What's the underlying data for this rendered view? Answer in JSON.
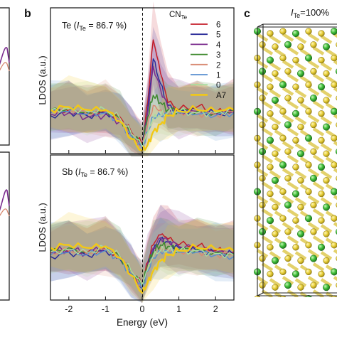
{
  "panel_labels": {
    "b": "b",
    "c": "c"
  },
  "panel_c": {
    "title_prefix": "I",
    "title_sub": "Te",
    "title_suffix": "=100%"
  },
  "colors": {
    "6": "#c41e2a",
    "5": "#2b2d9a",
    "4": "#7b2d8e",
    "3": "#3e8a2e",
    "2": "#d88a72",
    "1": "#5a8fd0",
    "0": "#a8dca0",
    "A7": "#f2c816"
  },
  "chart_data": [
    {
      "type": "line",
      "panel": "b-top",
      "title": "Te (I_Te = 86.7 %)",
      "title_parts": {
        "a": "Te (",
        "i": "I",
        "sub": "Te",
        "b": " = 86.7 %)"
      },
      "ylabel": "LDOS (a.u.)",
      "xlabel": "",
      "xlim": [
        -2.5,
        2.5
      ],
      "ylim": [
        0,
        1
      ],
      "legend": {
        "placement": "top-right",
        "header": "CN",
        "header_sub": "Te",
        "entries": [
          "6",
          "5",
          "4",
          "3",
          "2",
          "1",
          "0",
          "A7"
        ]
      },
      "x": [
        -2.5,
        -2.0,
        -1.5,
        -1.0,
        -0.6,
        -0.3,
        0.0,
        0.15,
        0.3,
        0.5,
        0.7,
        1.0,
        1.5,
        2.0,
        2.5
      ],
      "series": [
        {
          "name": "6",
          "values": [
            0.28,
            0.3,
            0.27,
            0.29,
            0.25,
            0.15,
            0.06,
            0.35,
            0.78,
            0.55,
            0.35,
            0.3,
            0.32,
            0.28,
            0.3
          ]
        },
        {
          "name": "5",
          "values": [
            0.26,
            0.29,
            0.26,
            0.28,
            0.23,
            0.13,
            0.05,
            0.3,
            0.65,
            0.48,
            0.33,
            0.29,
            0.3,
            0.27,
            0.28
          ]
        },
        {
          "name": "4",
          "values": [
            0.27,
            0.28,
            0.25,
            0.27,
            0.22,
            0.14,
            0.05,
            0.28,
            0.6,
            0.44,
            0.32,
            0.28,
            0.29,
            0.27,
            0.29
          ]
        },
        {
          "name": "3",
          "values": [
            0.3,
            0.31,
            0.28,
            0.3,
            0.24,
            0.14,
            0.06,
            0.25,
            0.4,
            0.35,
            0.3,
            0.3,
            0.29,
            0.28,
            0.3
          ]
        },
        {
          "name": "2",
          "values": [
            0.29,
            0.3,
            0.27,
            0.29,
            0.23,
            0.13,
            0.05,
            0.2,
            0.33,
            0.3,
            0.28,
            0.29,
            0.28,
            0.27,
            0.29
          ]
        },
        {
          "name": "1",
          "values": [
            0.28,
            0.29,
            0.27,
            0.28,
            0.22,
            0.12,
            0.04,
            0.15,
            0.25,
            0.26,
            0.27,
            0.28,
            0.27,
            0.26,
            0.28
          ]
        },
        {
          "name": "0",
          "values": [
            0.3,
            0.31,
            0.29,
            0.3,
            0.24,
            0.14,
            0.05,
            0.14,
            0.24,
            0.26,
            0.28,
            0.29,
            0.28,
            0.28,
            0.3
          ]
        },
        {
          "name": "A7",
          "values": [
            0.3,
            0.32,
            0.3,
            0.3,
            0.22,
            0.1,
            0.02,
            0.06,
            0.15,
            0.2,
            0.26,
            0.29,
            0.3,
            0.29,
            0.3
          ]
        }
      ],
      "grid": false
    },
    {
      "type": "line",
      "panel": "b-bottom",
      "title": "Sb (I_Te = 86.7 %)",
      "title_parts": {
        "a": "Sb (",
        "i": "I",
        "sub": "Te",
        "b": " = 86.7 %)"
      },
      "ylabel": "LDOS (a.u.)",
      "xlabel": "Energy (eV)",
      "xlim": [
        -2.5,
        2.5
      ],
      "ylim": [
        0,
        1
      ],
      "xticks": [
        -2,
        -1,
        0,
        1,
        2
      ],
      "x": [
        -2.5,
        -2.0,
        -1.5,
        -1.0,
        -0.6,
        -0.3,
        0.0,
        0.15,
        0.3,
        0.5,
        0.7,
        1.0,
        1.5,
        2.0,
        2.5
      ],
      "series": [
        {
          "name": "6",
          "values": [
            0.32,
            0.34,
            0.33,
            0.36,
            0.3,
            0.2,
            0.1,
            0.26,
            0.38,
            0.45,
            0.42,
            0.38,
            0.37,
            0.34,
            0.33
          ]
        },
        {
          "name": "5",
          "values": [
            0.3,
            0.33,
            0.31,
            0.34,
            0.28,
            0.18,
            0.08,
            0.24,
            0.34,
            0.42,
            0.4,
            0.36,
            0.34,
            0.32,
            0.31
          ]
        },
        {
          "name": "4",
          "values": [
            0.33,
            0.35,
            0.32,
            0.37,
            0.3,
            0.19,
            0.09,
            0.25,
            0.36,
            0.43,
            0.41,
            0.37,
            0.36,
            0.33,
            0.32
          ]
        },
        {
          "name": "3",
          "values": [
            0.34,
            0.36,
            0.33,
            0.37,
            0.3,
            0.2,
            0.1,
            0.24,
            0.33,
            0.38,
            0.37,
            0.35,
            0.35,
            0.33,
            0.32
          ]
        },
        {
          "name": "2",
          "values": [
            0.32,
            0.34,
            0.32,
            0.35,
            0.29,
            0.19,
            0.09,
            0.22,
            0.31,
            0.36,
            0.35,
            0.34,
            0.34,
            0.32,
            0.31
          ]
        },
        {
          "name": "1",
          "values": [
            0.31,
            0.33,
            0.31,
            0.34,
            0.28,
            0.18,
            0.08,
            0.2,
            0.29,
            0.33,
            0.33,
            0.33,
            0.33,
            0.31,
            0.3
          ]
        },
        {
          "name": "0",
          "values": [
            0.33,
            0.35,
            0.33,
            0.36,
            0.3,
            0.2,
            0.1,
            0.21,
            0.3,
            0.34,
            0.34,
            0.34,
            0.34,
            0.32,
            0.31
          ]
        },
        {
          "name": "A7",
          "values": [
            0.36,
            0.38,
            0.36,
            0.37,
            0.29,
            0.17,
            0.05,
            0.12,
            0.2,
            0.27,
            0.31,
            0.34,
            0.36,
            0.35,
            0.34
          ]
        }
      ],
      "grid": false
    }
  ]
}
